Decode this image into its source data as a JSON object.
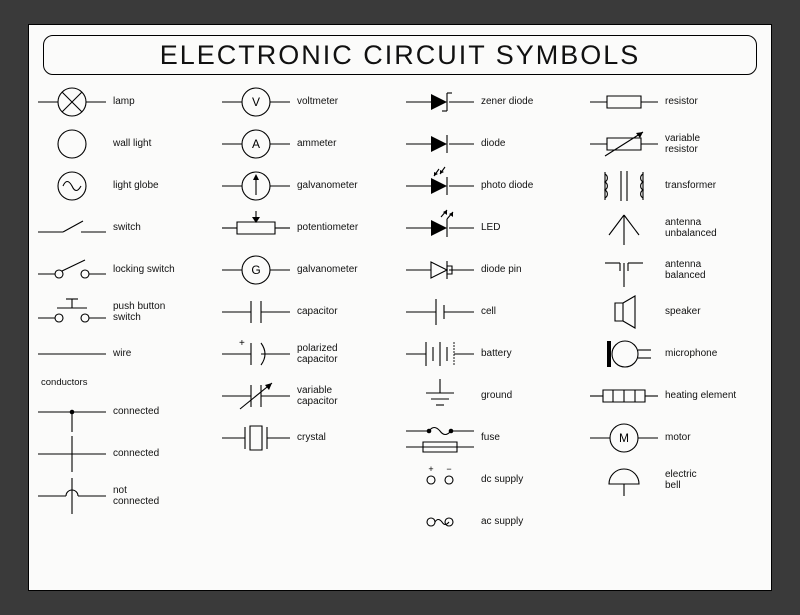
{
  "title": "ELECTRONIC CIRCUIT SYMBOLS",
  "background_color": "#fbfbfa",
  "frame_color": "#3a3a3a",
  "stroke_color": "#000000",
  "label_fontsize": 10,
  "title_fontsize": 27,
  "columns": [
    {
      "section": null,
      "items": [
        {
          "id": "lamp",
          "label": "lamp"
        },
        {
          "id": "wall-light",
          "label": "wall light"
        },
        {
          "id": "light-globe",
          "label": "light globe"
        },
        {
          "id": "switch",
          "label": "switch"
        },
        {
          "id": "locking-switch",
          "label": "locking switch"
        },
        {
          "id": "push-button-switch",
          "label": "push button\nswitch"
        },
        {
          "id": "wire",
          "label": "wire"
        }
      ],
      "section2_title": "conductors",
      "items2": [
        {
          "id": "connected-dot",
          "label": "connected"
        },
        {
          "id": "connected-cross",
          "label": "connected"
        },
        {
          "id": "not-connected",
          "label": "not\nconnected"
        }
      ]
    },
    {
      "items": [
        {
          "id": "voltmeter",
          "label": "voltmeter"
        },
        {
          "id": "ammeter",
          "label": "ammeter"
        },
        {
          "id": "galvanometer-arrow",
          "label": "galvanometer"
        },
        {
          "id": "potentiometer",
          "label": "potentiometer"
        },
        {
          "id": "galvanometer-g",
          "label": "galvanometer"
        },
        {
          "id": "capacitor",
          "label": "capacitor"
        },
        {
          "id": "polarized-capacitor",
          "label": "polarized\ncapacitor"
        },
        {
          "id": "variable-capacitor",
          "label": "variable\ncapacitor"
        },
        {
          "id": "crystal",
          "label": "crystal"
        }
      ]
    },
    {
      "items": [
        {
          "id": "zener-diode",
          "label": "zener diode"
        },
        {
          "id": "diode",
          "label": "diode"
        },
        {
          "id": "photo-diode",
          "label": "photo diode"
        },
        {
          "id": "led",
          "label": "LED"
        },
        {
          "id": "diode-pin",
          "label": "diode pin"
        },
        {
          "id": "cell",
          "label": "cell"
        },
        {
          "id": "battery",
          "label": "battery"
        },
        {
          "id": "ground",
          "label": "ground"
        },
        {
          "id": "fuse",
          "label": "fuse"
        },
        {
          "id": "dc-supply",
          "label": "dc supply"
        },
        {
          "id": "ac-supply",
          "label": "ac supply"
        }
      ]
    },
    {
      "items": [
        {
          "id": "resistor",
          "label": "resistor"
        },
        {
          "id": "variable-resistor",
          "label": "variable\nresistor"
        },
        {
          "id": "transformer",
          "label": "transformer"
        },
        {
          "id": "antenna-unbalanced",
          "label": "antenna\nunbalanced"
        },
        {
          "id": "antenna-balanced",
          "label": "antenna\nbalanced"
        },
        {
          "id": "speaker",
          "label": "speaker"
        },
        {
          "id": "microphone",
          "label": "microphone"
        },
        {
          "id": "heating-element",
          "label": "heating element"
        },
        {
          "id": "motor",
          "label": "motor"
        },
        {
          "id": "electric-bell",
          "label": "electric\nbell"
        }
      ]
    }
  ]
}
